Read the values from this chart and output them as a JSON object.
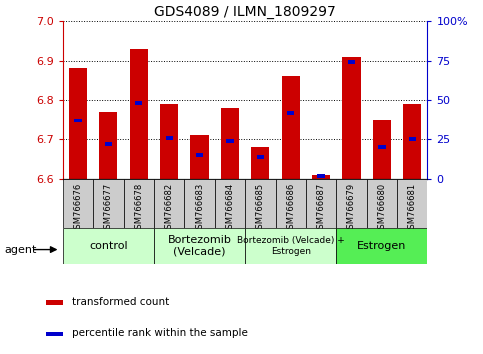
{
  "title": "GDS4089 / ILMN_1809297",
  "samples": [
    "GSM766676",
    "GSM766677",
    "GSM766678",
    "GSM766682",
    "GSM766683",
    "GSM766684",
    "GSM766685",
    "GSM766686",
    "GSM766687",
    "GSM766679",
    "GSM766680",
    "GSM766681"
  ],
  "transformed_count": [
    6.88,
    6.77,
    6.93,
    6.79,
    6.71,
    6.78,
    6.68,
    6.86,
    6.61,
    6.91,
    6.75,
    6.79
  ],
  "percentile_rank": [
    37,
    22,
    48,
    26,
    15,
    24,
    14,
    42,
    2,
    74,
    20,
    25
  ],
  "ylim": [
    6.6,
    7.0
  ],
  "yticks": [
    6.6,
    6.7,
    6.8,
    6.9,
    7.0
  ],
  "right_ylim": [
    0,
    100
  ],
  "right_yticks": [
    0,
    25,
    50,
    75,
    100
  ],
  "right_yticklabels": [
    "0",
    "25",
    "50",
    "75",
    "100%"
  ],
  "bar_color": "#cc0000",
  "percentile_color": "#0000cc",
  "bar_bottom": 6.6,
  "groups": [
    {
      "label": "control",
      "start": 0,
      "end": 3,
      "color": "#ccffcc"
    },
    {
      "label": "Bortezomib\n(Velcade)",
      "start": 3,
      "end": 6,
      "color": "#ccffcc"
    },
    {
      "label": "Bortezomib (Velcade) +\nEstrogen",
      "start": 6,
      "end": 9,
      "color": "#ccffcc"
    },
    {
      "label": "Estrogen",
      "start": 9,
      "end": 12,
      "color": "#55ee55"
    }
  ],
  "legend_items": [
    {
      "label": "transformed count",
      "color": "#cc0000"
    },
    {
      "label": "percentile rank within the sample",
      "color": "#0000cc"
    }
  ],
  "agent_label": "agent",
  "grid_color": "#000000",
  "ylabel_color": "#cc0000",
  "right_ylabel_color": "#0000cc",
  "plot_bg": "#ffffff",
  "tick_label_bg": "#cccccc"
}
